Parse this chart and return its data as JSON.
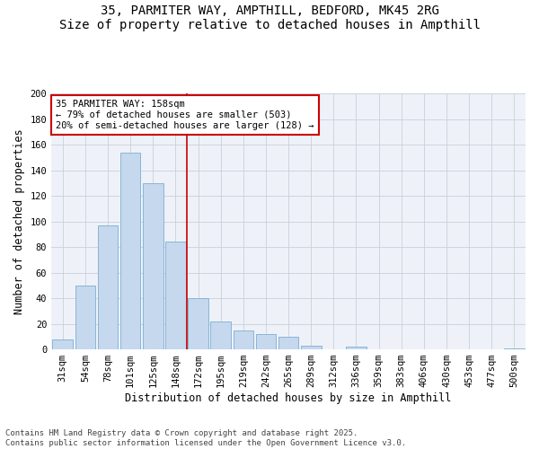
{
  "title_line1": "35, PARMITER WAY, AMPTHILL, BEDFORD, MK45 2RG",
  "title_line2": "Size of property relative to detached houses in Ampthill",
  "xlabel": "Distribution of detached houses by size in Ampthill",
  "ylabel": "Number of detached properties",
  "bin_labels": [
    "31sqm",
    "54sqm",
    "78sqm",
    "101sqm",
    "125sqm",
    "148sqm",
    "172sqm",
    "195sqm",
    "219sqm",
    "242sqm",
    "265sqm",
    "289sqm",
    "312sqm",
    "336sqm",
    "359sqm",
    "383sqm",
    "406sqm",
    "430sqm",
    "453sqm",
    "477sqm",
    "500sqm"
  ],
  "bar_values": [
    8,
    50,
    97,
    154,
    130,
    84,
    40,
    22,
    15,
    12,
    10,
    3,
    0,
    2,
    0,
    0,
    0,
    0,
    0,
    0,
    1
  ],
  "bar_color": "#c5d8ed",
  "bar_edge_color": "#7bafd4",
  "property_line_label": "35 PARMITER WAY: 158sqm",
  "pct_smaller": "79% of detached houses are smaller (503)",
  "pct_larger": "20% of semi-detached houses are larger (128)",
  "annotation_box_color": "#ffffff",
  "annotation_box_edge_color": "#cc0000",
  "vline_color": "#cc0000",
  "background_color": "#eef2f8",
  "grid_color": "#c8d0dc",
  "footer_text": "Contains HM Land Registry data © Crown copyright and database right 2025.\nContains public sector information licensed under the Open Government Licence v3.0.",
  "ylim": [
    0,
    200
  ],
  "yticks": [
    0,
    20,
    40,
    60,
    80,
    100,
    120,
    140,
    160,
    180,
    200
  ],
  "title_fontsize": 10,
  "axis_label_fontsize": 8.5,
  "tick_fontsize": 7.5,
  "annotation_fontsize": 7.5,
  "footer_fontsize": 6.5,
  "vline_x_index": 5.5
}
